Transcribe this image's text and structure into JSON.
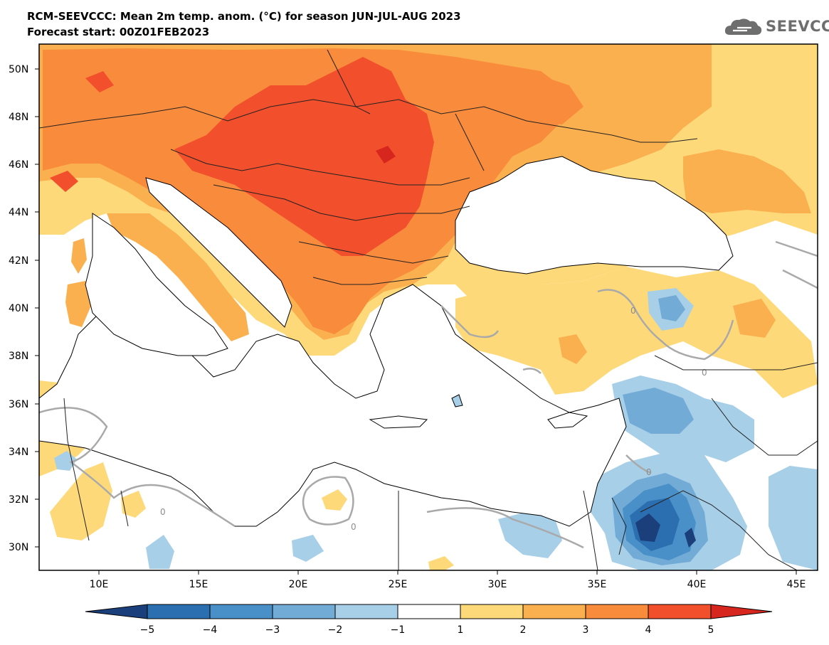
{
  "header": {
    "title": "RCM-SEEVCCC: Mean 2m temp. anom. (°C) for season JUN-JUL-AUG 2023",
    "subtitle": "Forecast start: 00Z01FEB2023",
    "logo_text": "SEEVCCC",
    "logo_icon": "cloud-icon"
  },
  "map": {
    "lat_labels": [
      "50N",
      "48N",
      "46N",
      "44N",
      "42N",
      "40N",
      "38N",
      "36N",
      "34N",
      "32N",
      "30N"
    ],
    "lon_labels": [
      "10E",
      "15E",
      "20E",
      "25E",
      "30E",
      "35E",
      "40E",
      "45E"
    ],
    "contour_label": "0"
  },
  "colorbar": {
    "labels": [
      "−5",
      "−4",
      "−3",
      "−2",
      "−1",
      "1",
      "2",
      "3",
      "4",
      "5"
    ],
    "colors": [
      "#1a3f7a",
      "#2c6fb0",
      "#4a90c8",
      "#72acd6",
      "#a8cfe8",
      "#ffffff",
      "#fed97a",
      "#fbb04f",
      "#f98b3c",
      "#f24f2d",
      "#d7261e"
    ]
  },
  "colors": {
    "anom_plus1": "#fed97a",
    "anom_plus2": "#fbb04f",
    "anom_plus3": "#f98b3c",
    "anom_plus4": "#f24f2d",
    "anom_plus5": "#d7261e",
    "anom_minus1": "#a8cfe8",
    "anom_minus2": "#72acd6",
    "anom_minus3": "#4a90c8",
    "anom_minus4": "#2c6fb0",
    "anom_minus5": "#1a3f7a",
    "zero_contour": "#a9a9a9"
  }
}
